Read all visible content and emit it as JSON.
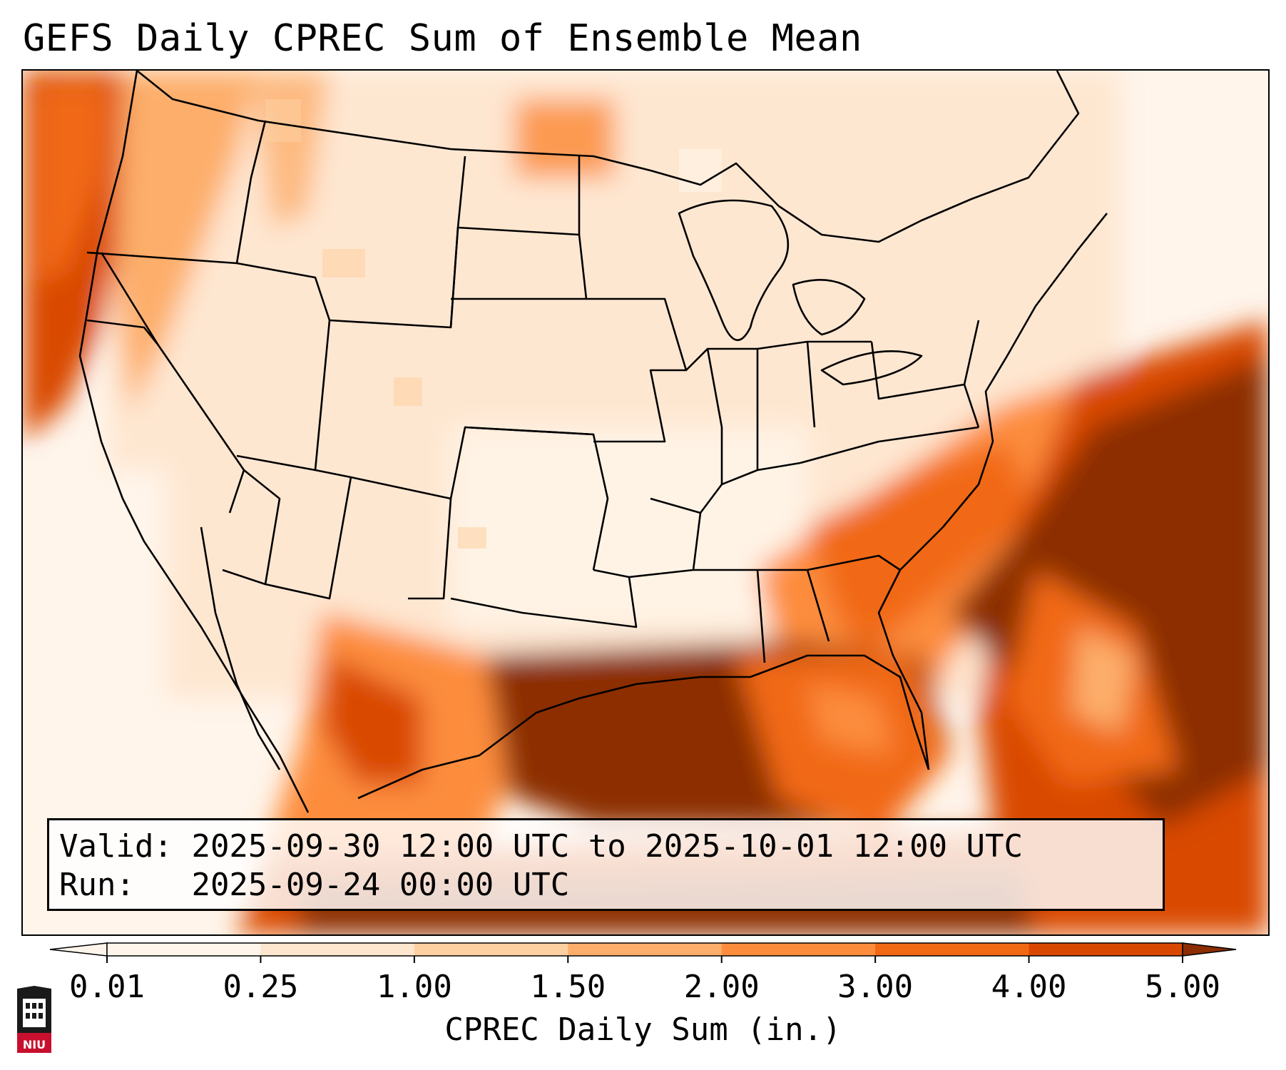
{
  "title": "GEFS Daily CPREC Sum of Ensemble Mean",
  "info": {
    "valid_label": "Valid:",
    "valid_value": "2025-09-30 12:00 UTC to 2025-10-01 12:00 UTC",
    "run_label": "Run:",
    "run_value": "2025-09-24 00:00 UTC"
  },
  "colorbar": {
    "label": "CPREC Daily Sum (in.)",
    "ticks": [
      "0.01",
      "0.25",
      "1.00",
      "1.50",
      "2.00",
      "3.00",
      "4.00",
      "5.00"
    ],
    "colors": [
      "#fff5eb",
      "#fee6ce",
      "#fdd0a2",
      "#fdae6b",
      "#fd8d3c",
      "#f16913",
      "#d94801",
      "#8c2d04"
    ],
    "extend": "both"
  },
  "logo": {
    "text": "NIU",
    "color": "#c8102e"
  },
  "map": {
    "region": "CONUS",
    "coastline_color": "#000000",
    "heavy_precip_regions": [
      "Gulf Coast",
      "Southeast US",
      "Western Atlantic",
      "Pacific Northwest coast"
    ]
  }
}
